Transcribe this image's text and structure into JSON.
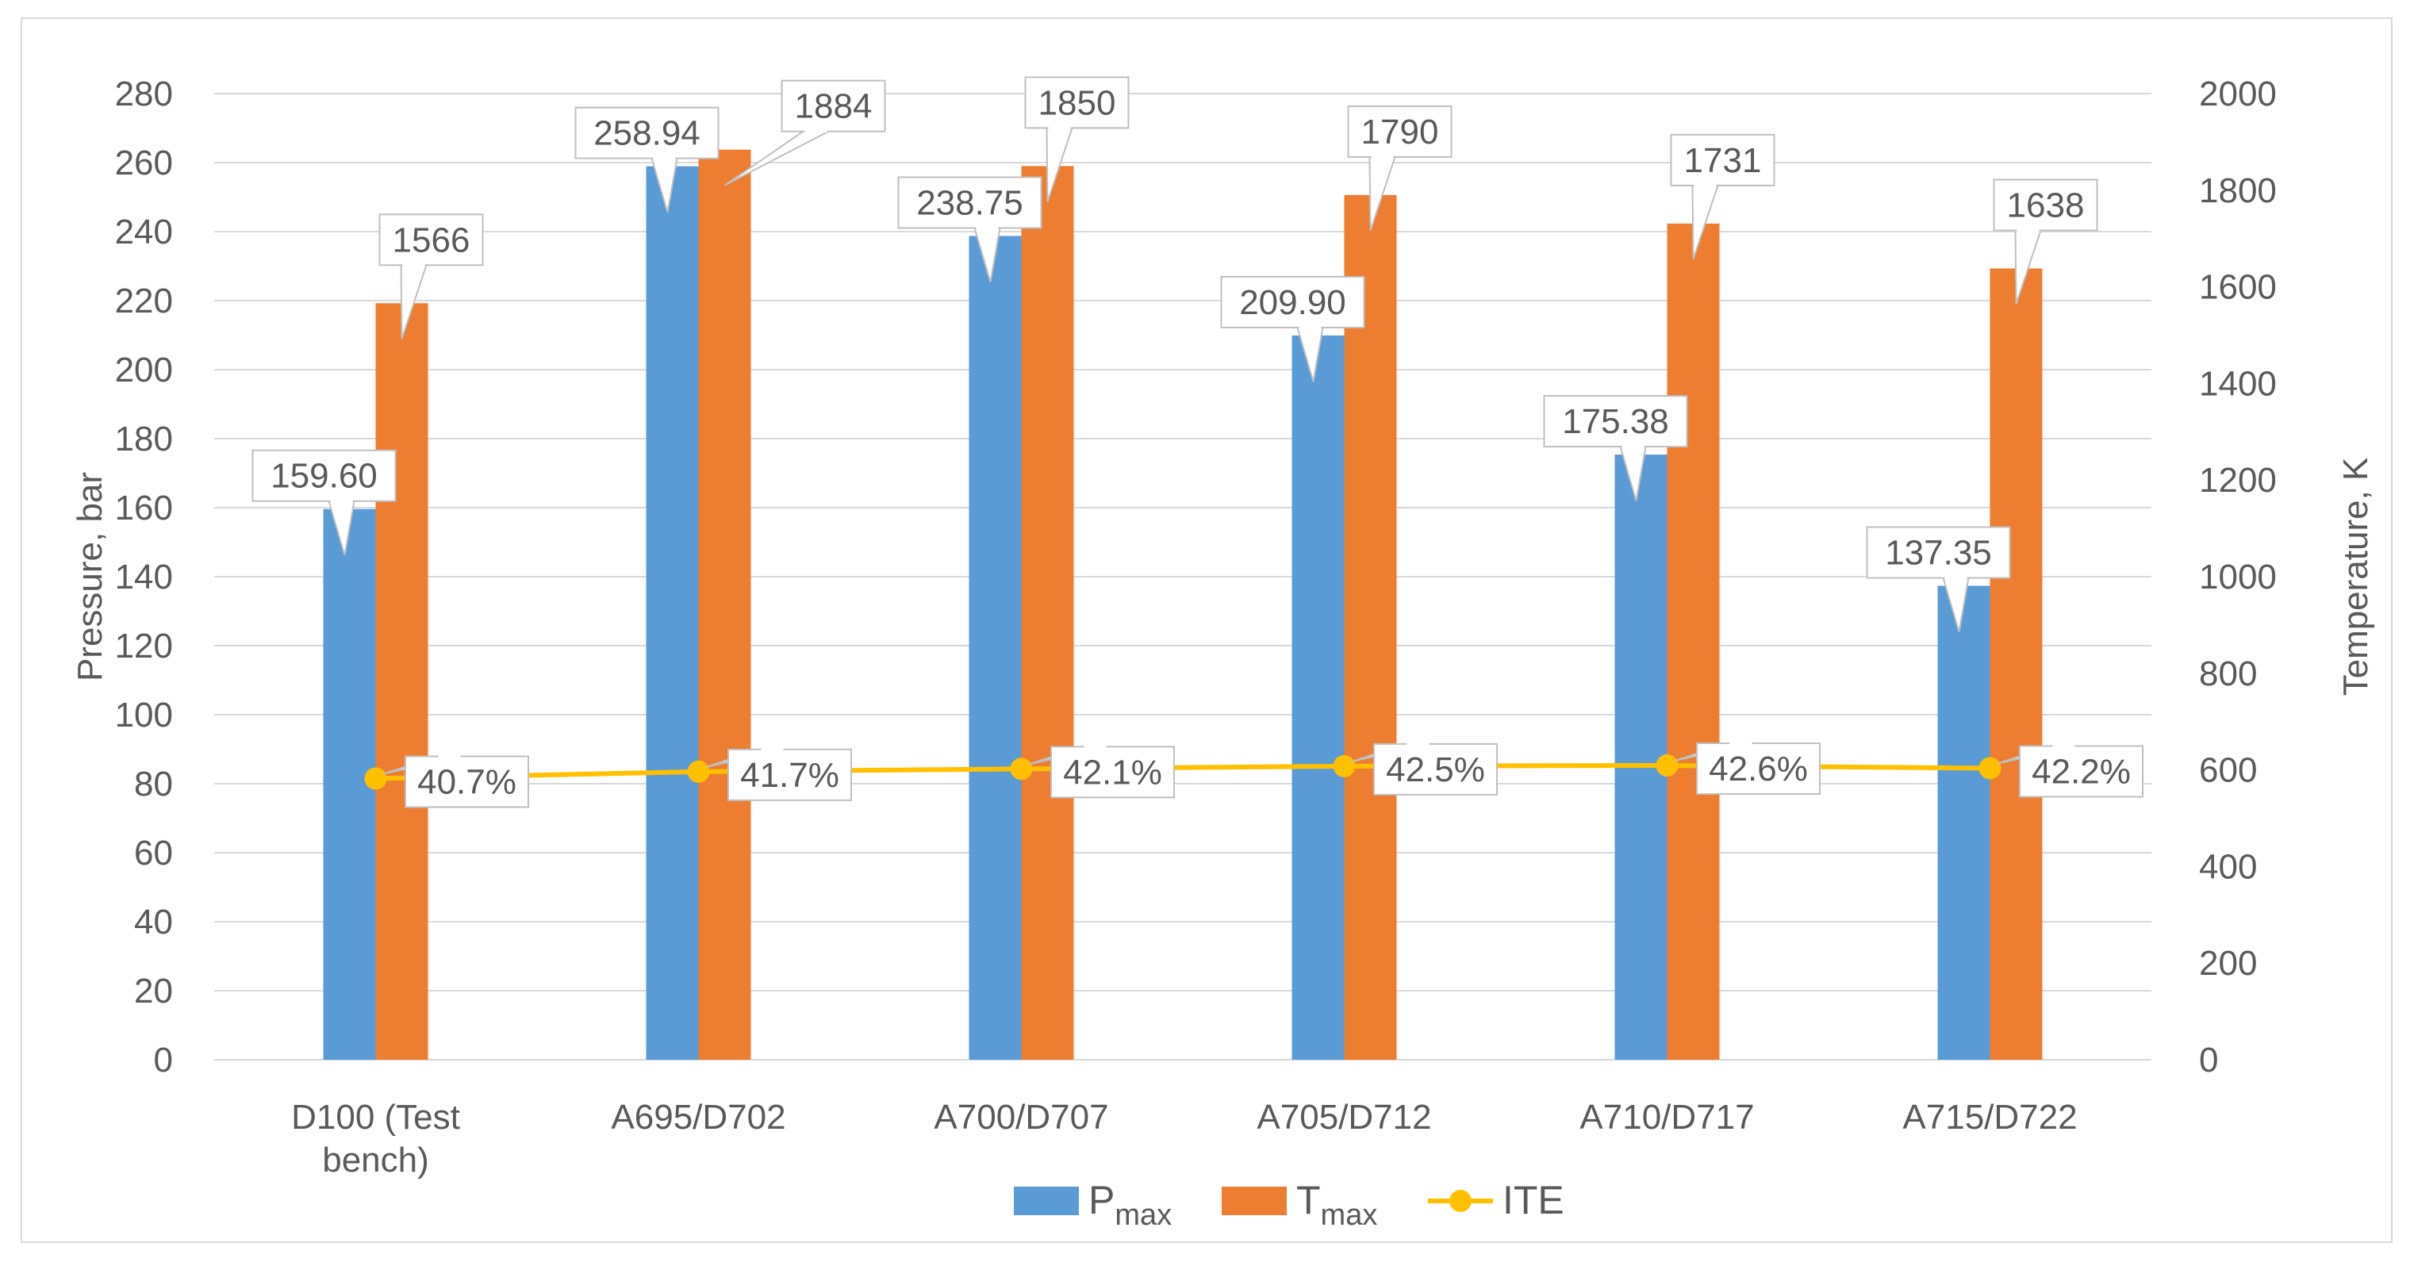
{
  "chart_data": {
    "type": "bar",
    "categories": [
      "D100 (Test bench)",
      "A695/D702",
      "A700/D707",
      "A705/D712",
      "A710/D717",
      "A715/D722"
    ],
    "category_lines": [
      [
        "D100 (Test",
        "bench)"
      ],
      [
        "A695/D702"
      ],
      [
        "A700/D707"
      ],
      [
        "A705/D712"
      ],
      [
        "A710/D717"
      ],
      [
        "A715/D722"
      ]
    ],
    "series": [
      {
        "name": "Pmax",
        "name_main": "P",
        "name_sub": "max",
        "axis": "left",
        "kind": "bar",
        "color": "#5b9bd5",
        "values": [
          159.6,
          258.94,
          238.75,
          209.9,
          175.38,
          137.35
        ],
        "labels": [
          "159.60",
          "258.94",
          "238.75",
          "209.90",
          "175.38",
          "137.35"
        ]
      },
      {
        "name": "Tmax",
        "name_main": "T",
        "name_sub": "max",
        "axis": "right",
        "kind": "bar",
        "color": "#ed7d31",
        "values": [
          1566,
          1884,
          1850,
          1790,
          1731,
          1638
        ],
        "labels": [
          "1566",
          "1884",
          "1850",
          "1790",
          "1731",
          "1638"
        ]
      },
      {
        "name": "ITE",
        "axis": "right",
        "kind": "line",
        "color": "#ffc000",
        "values": [
          40.7,
          41.7,
          42.1,
          42.5,
          42.6,
          42.2
        ],
        "labels": [
          "40.7%",
          "41.7%",
          "42.1%",
          "42.5%",
          "42.6%",
          "42.2%"
        ]
      }
    ],
    "ylabel": "Pressure, bar",
    "ylim": [
      0,
      280
    ],
    "yticks": [
      0,
      20,
      40,
      60,
      80,
      100,
      120,
      140,
      160,
      180,
      200,
      220,
      240,
      260,
      280
    ],
    "y2label": "Temperature, K",
    "y2lim": [
      0,
      2000
    ],
    "y2ticks": [
      0,
      200,
      400,
      600,
      800,
      1000,
      1200,
      1400,
      1600,
      1800,
      2000
    ],
    "grid": true,
    "legend_position": "bottom-center",
    "axis_text_color": "#595959",
    "gridline_color": "#d9d9d9"
  }
}
